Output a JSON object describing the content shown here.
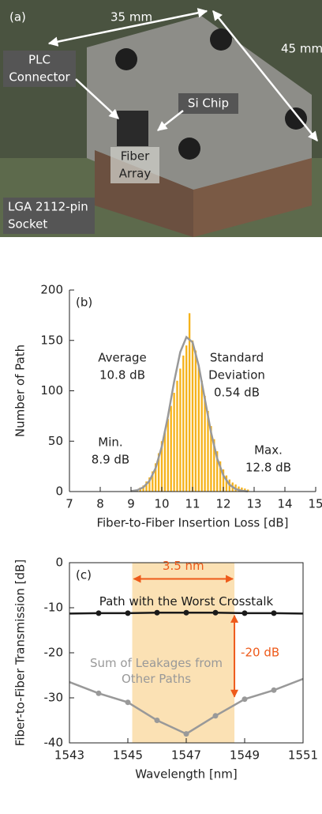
{
  "photo": {
    "label": "(a)",
    "dimensions": [
      "35 mm",
      "45 mm"
    ],
    "parts": [
      [
        "PLC",
        "Connector"
      ],
      [
        "Si Chip"
      ],
      [
        "Fiber",
        "Array"
      ],
      [
        "LGA 2112-pin",
        "Socket"
      ]
    ]
  },
  "chart_data": [
    {
      "type": "histogram",
      "panel_label": "(b)",
      "xlabel": "Fiber-to-Fiber Insertion Loss  [dB]",
      "ylabel": "Number of Path",
      "bins": [
        9.15,
        9.25,
        9.35,
        9.45,
        9.55,
        9.65,
        9.75,
        9.85,
        9.95,
        10.05,
        10.15,
        10.25,
        10.35,
        10.45,
        10.55,
        10.65,
        10.75,
        10.85,
        10.95,
        11.05,
        11.15,
        11.25,
        11.35,
        11.45,
        11.55,
        11.65,
        11.75,
        11.85,
        11.95,
        12.05,
        12.15,
        12.25,
        12.35,
        12.45,
        12.55,
        12.65,
        12.75,
        12.85
      ],
      "values": [
        2,
        4,
        6,
        10,
        14,
        20,
        28,
        38,
        50,
        60,
        72,
        85,
        98,
        110,
        122,
        135,
        145,
        177,
        150,
        140,
        125,
        110,
        95,
        80,
        65,
        52,
        40,
        30,
        22,
        16,
        12,
        9,
        7,
        5,
        4,
        3,
        2
      ],
      "color": "#f5b21b",
      "fit": {
        "color": "#999999",
        "x": [
          9.0,
          9.2,
          9.4,
          9.6,
          9.8,
          10.0,
          10.2,
          10.4,
          10.6,
          10.8,
          11.0,
          11.2,
          11.4,
          11.6,
          11.8,
          12.0,
          12.2,
          12.4,
          12.6,
          12.8
        ],
        "values": [
          0.4,
          1.4,
          4.2,
          10.6,
          23.3,
          44.6,
          74.6,
          108.8,
          138.4,
          153.3,
          148.2,
          124.8,
          91.7,
          58.7,
          32.8,
          16.0,
          6.8,
          2.5,
          0.8,
          0.2
        ]
      },
      "xlim": [
        7,
        15
      ],
      "xticks": [
        7,
        8,
        9,
        10,
        11,
        12,
        13,
        14,
        15
      ],
      "ylim": [
        0,
        200
      ],
      "yticks": [
        0,
        50,
        100,
        150,
        200
      ],
      "annotations": [
        [
          "Average",
          "10.8 dB"
        ],
        [
          "Standard",
          "Deviation",
          "0.54 dB"
        ],
        [
          "Min.",
          "8.9 dB"
        ],
        [
          "Max.",
          "12.8 dB"
        ]
      ]
    },
    {
      "type": "line",
      "panel_label": "(c)",
      "xlabel": "Wavelength  [nm]",
      "ylabel": "Fiber-to-Fiber Transmission  [dB]",
      "x": [
        1543,
        1544,
        1545,
        1546,
        1547,
        1548,
        1549,
        1550,
        1551
      ],
      "series": [
        {
          "name": "Path with the Worst Crosstalk",
          "color": "#1a1a1a",
          "values": [
            -11.3,
            -11.2,
            -11.2,
            -11.1,
            -11.1,
            -11.1,
            -11.2,
            -11.2,
            -11.3
          ]
        },
        {
          "name": "Sum of Leakages from Other Paths",
          "color": "#999999",
          "values": [
            -26.5,
            -29,
            -31,
            -35,
            -38,
            -34,
            -30.3,
            -28.3,
            -25.8
          ]
        }
      ],
      "band": [
        1545.15,
        1548.65
      ],
      "band_color": "#fbe1b4",
      "arrow_color": "#ee5a1a",
      "annotations": [
        "3.5 nm",
        "-20 dB"
      ],
      "xlim": [
        1543,
        1551
      ],
      "xticks": [
        1543,
        1545,
        1547,
        1549,
        1551
      ],
      "ylim": [
        -40,
        0
      ],
      "yticks": [
        0,
        -10,
        -20,
        -30,
        -40
      ]
    }
  ]
}
